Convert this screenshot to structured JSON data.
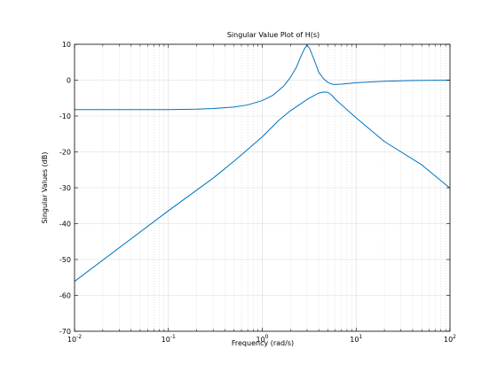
{
  "chart_data": {
    "type": "line",
    "title": "Singular Value Plot of H(s)",
    "xlabel": "Frequency (rad/s)",
    "ylabel": "Singular Values (dB)",
    "xscale": "log",
    "xlim": [
      0.01,
      100
    ],
    "ylim": [
      -70,
      10
    ],
    "grid": true,
    "x_ticks": [
      {
        "value": 0.01,
        "base": "10",
        "exp": "-2"
      },
      {
        "value": 0.1,
        "base": "10",
        "exp": "-1"
      },
      {
        "value": 1,
        "base": "10",
        "exp": "0"
      },
      {
        "value": 10,
        "base": "10",
        "exp": "1"
      },
      {
        "value": 100,
        "base": "10",
        "exp": "2"
      }
    ],
    "y_ticks": [
      10,
      0,
      -10,
      -20,
      -30,
      -40,
      -50,
      -60,
      -70
    ],
    "line_color": "#0072bd",
    "series": [
      {
        "x": [
          0.01,
          0.03,
          0.1,
          0.2,
          0.3,
          0.5,
          0.7,
          1.0,
          1.3,
          1.7,
          2.0,
          2.3,
          2.6,
          2.8,
          3.0,
          3.2,
          3.4,
          3.7,
          4.0,
          4.5,
          5.0,
          5.5,
          6.0,
          7.0,
          10,
          20,
          40,
          100
        ],
        "y": [
          -8.2,
          -8.2,
          -8.2,
          -8.1,
          -7.9,
          -7.5,
          -6.9,
          -5.7,
          -4.2,
          -1.6,
          0.8,
          3.5,
          6.8,
          8.6,
          9.8,
          8.8,
          7.1,
          4.6,
          2.2,
          0.4,
          -0.6,
          -1.1,
          -1.2,
          -1.1,
          -0.7,
          -0.3,
          -0.1,
          0.0
        ]
      },
      {
        "x": [
          0.01,
          0.1,
          0.3,
          0.5,
          1.0,
          1.5,
          2.0,
          2.5,
          3.0,
          3.5,
          4.0,
          4.5,
          5.0,
          5.5,
          6.0,
          7.0,
          10,
          20,
          50,
          100
        ],
        "y": [
          -56.1,
          -36.4,
          -27.3,
          -22.6,
          -15.8,
          -11.2,
          -8.5,
          -6.8,
          -5.4,
          -4.4,
          -3.6,
          -3.3,
          -3.4,
          -4.2,
          -5.3,
          -6.9,
          -10.5,
          -17.1,
          -23.6,
          -30.1
        ]
      }
    ]
  }
}
